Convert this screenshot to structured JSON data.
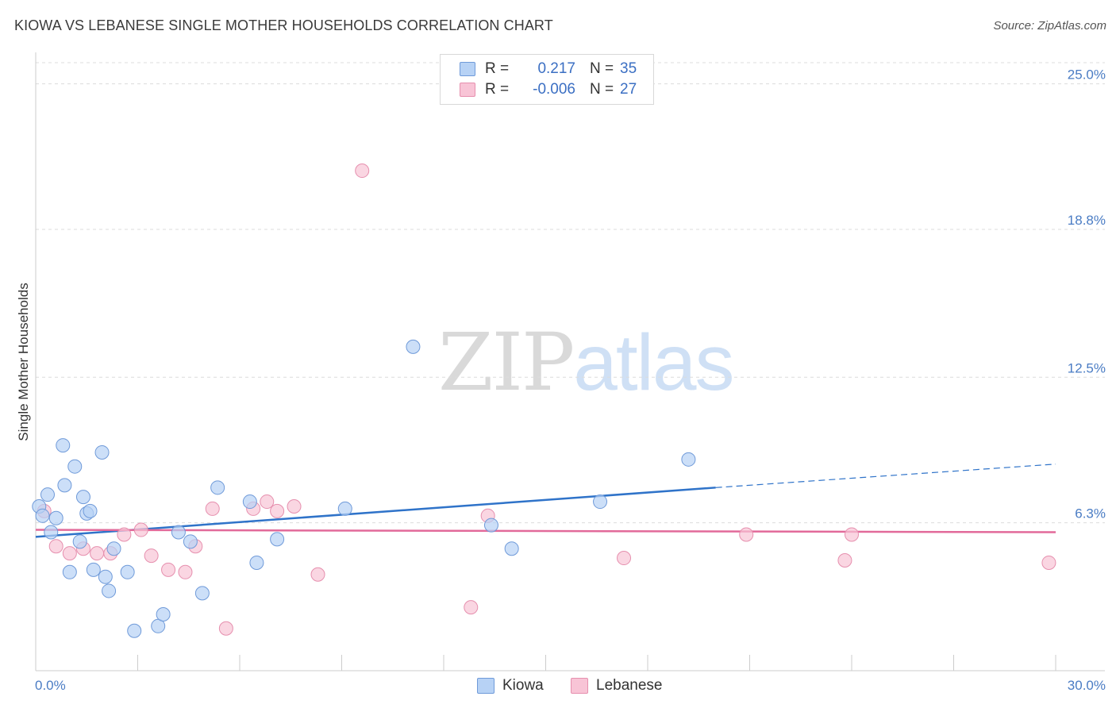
{
  "title": "KIOWA VS LEBANESE SINGLE MOTHER HOUSEHOLDS CORRELATION CHART",
  "source": "Source: ZipAtlas.com",
  "watermark": {
    "zip": "ZIP",
    "atlas": "atlas"
  },
  "legend": {
    "rows": [
      {
        "r_label": "R =",
        "r_value": "0.217",
        "n_label": "N =",
        "n_value": "35"
      },
      {
        "r_label": "R =",
        "r_value": "-0.006",
        "n_label": "N =",
        "n_value": "27"
      }
    ]
  },
  "bottom_legend": [
    "Kiowa",
    "Lebanese"
  ],
  "colors": {
    "kiowa_fill": "#b7d2f5",
    "kiowa_stroke": "#6f9ad9",
    "kiowa_line": "#2f73c9",
    "lebanese_fill": "#f8c4d6",
    "lebanese_stroke": "#e68fae",
    "lebanese_line": "#e26a9a",
    "tick_text": "#4a7cc4",
    "grid": "#dcdcdc"
  },
  "chart_data": {
    "type": "scatter",
    "title": "KIOWA VS LEBANESE SINGLE MOTHER HOUSEHOLDS CORRELATION CHART",
    "xlabel": "",
    "ylabel": "Single Mother Households",
    "xlim": [
      0,
      30
    ],
    "ylim": [
      0,
      25.9
    ],
    "y_ticks": [
      {
        "value": 6.3,
        "label": "6.3%"
      },
      {
        "value": 12.5,
        "label": "12.5%"
      },
      {
        "value": 18.8,
        "label": "18.8%"
      },
      {
        "value": 25.0,
        "label": "25.0%"
      }
    ],
    "x_tick_labels": [
      {
        "value": 0,
        "label": "0.0%"
      },
      {
        "value": 30,
        "label": "30.0%"
      }
    ],
    "x_minor_ticks": [
      3,
      6,
      9,
      12,
      15,
      18,
      21,
      24,
      27,
      30
    ],
    "grid": true,
    "legend_position": "top-center",
    "series": [
      {
        "name": "Kiowa",
        "points": [
          [
            0.1,
            7.0
          ],
          [
            0.2,
            6.6
          ],
          [
            0.35,
            7.5
          ],
          [
            0.45,
            5.9
          ],
          [
            0.6,
            6.5
          ],
          [
            0.8,
            9.6
          ],
          [
            0.85,
            7.9
          ],
          [
            1.0,
            4.2
          ],
          [
            1.15,
            8.7
          ],
          [
            1.3,
            5.5
          ],
          [
            1.4,
            7.4
          ],
          [
            1.5,
            6.7
          ],
          [
            1.6,
            6.8
          ],
          [
            1.7,
            4.3
          ],
          [
            1.95,
            9.3
          ],
          [
            2.05,
            4.0
          ],
          [
            2.15,
            3.4
          ],
          [
            2.3,
            5.2
          ],
          [
            2.7,
            4.2
          ],
          [
            2.9,
            1.7
          ],
          [
            3.6,
            1.9
          ],
          [
            3.75,
            2.4
          ],
          [
            4.2,
            5.9
          ],
          [
            4.55,
            5.5
          ],
          [
            4.9,
            3.3
          ],
          [
            5.35,
            7.8
          ],
          [
            6.3,
            7.2
          ],
          [
            6.5,
            4.6
          ],
          [
            7.1,
            5.6
          ],
          [
            9.1,
            6.9
          ],
          [
            11.1,
            13.8
          ],
          [
            13.4,
            6.2
          ],
          [
            14.0,
            5.2
          ],
          [
            16.6,
            7.2
          ],
          [
            19.2,
            9.0
          ]
        ],
        "trend": {
          "x": [
            0,
            20.0,
            30
          ],
          "y": [
            5.7,
            7.8,
            8.8
          ],
          "dashed_from": 20.0
        }
      },
      {
        "name": "Lebanese",
        "points": [
          [
            0.25,
            6.8
          ],
          [
            0.6,
            5.3
          ],
          [
            1.0,
            5.0
          ],
          [
            1.4,
            5.2
          ],
          [
            1.8,
            5.0
          ],
          [
            2.2,
            5.0
          ],
          [
            2.6,
            5.8
          ],
          [
            3.1,
            6.0
          ],
          [
            3.4,
            4.9
          ],
          [
            3.9,
            4.3
          ],
          [
            4.4,
            4.2
          ],
          [
            4.7,
            5.3
          ],
          [
            5.2,
            6.9
          ],
          [
            5.6,
            1.8
          ],
          [
            6.4,
            6.9
          ],
          [
            6.8,
            7.2
          ],
          [
            7.1,
            6.8
          ],
          [
            7.6,
            7.0
          ],
          [
            8.3,
            4.1
          ],
          [
            9.6,
            21.3
          ],
          [
            12.8,
            2.7
          ],
          [
            13.3,
            6.6
          ],
          [
            17.3,
            4.8
          ],
          [
            20.9,
            5.8
          ],
          [
            23.8,
            4.7
          ],
          [
            24.0,
            5.8
          ],
          [
            29.8,
            4.6
          ]
        ],
        "trend": {
          "x": [
            0,
            30
          ],
          "y": [
            6.0,
            5.9
          ]
        }
      }
    ]
  }
}
